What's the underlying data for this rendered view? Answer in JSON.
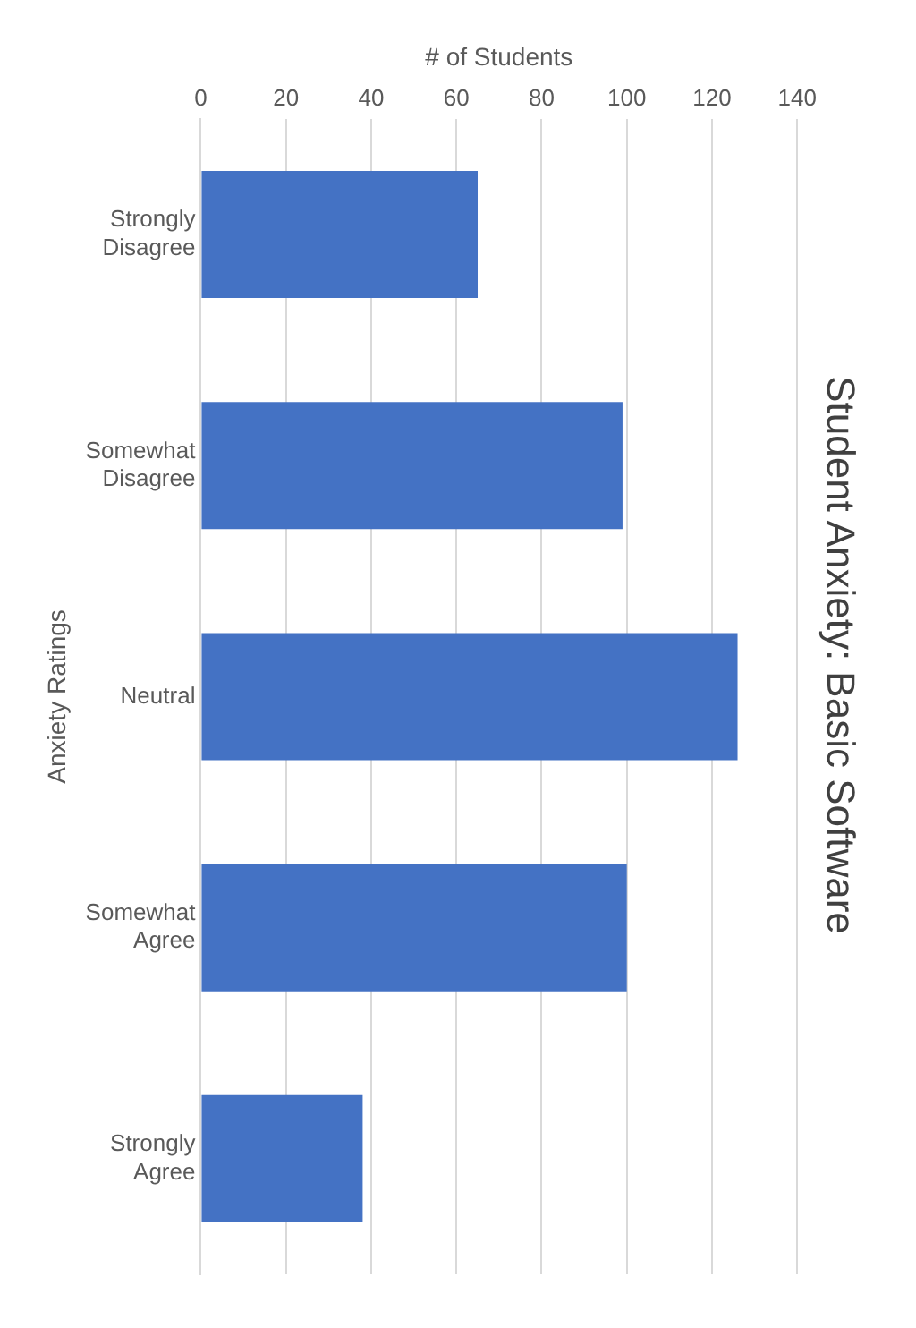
{
  "chart_data": {
    "type": "bar",
    "orientation": "horizontal",
    "title": "Student Anxiety: Basic Software",
    "xlabel": "# of Students",
    "ylabel": "Anxiety Ratings",
    "categories": [
      "Strongly Disagree",
      "Somewhat Disagree",
      "Neutral",
      "Somewhat Agree",
      "Strongly Agree"
    ],
    "values": [
      65,
      99,
      126,
      100,
      38
    ],
    "color": "#4472c4",
    "xlim": [
      0,
      140
    ],
    "xticks": [
      0,
      20,
      40,
      60,
      80,
      100,
      120,
      140
    ],
    "grid": "x",
    "legend": false
  }
}
